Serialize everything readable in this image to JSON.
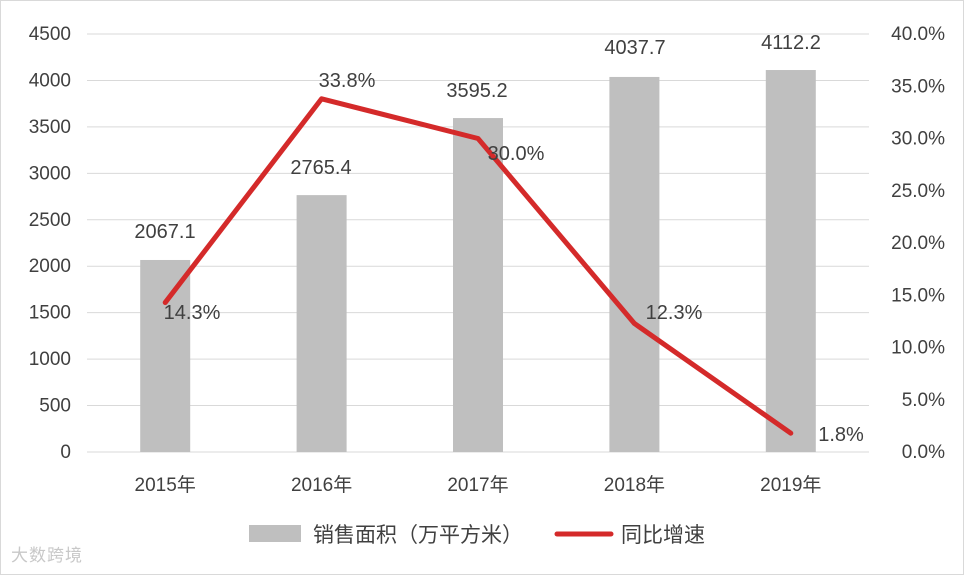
{
  "chart_data": {
    "type": "bar",
    "categories": [
      "2015年",
      "2016年",
      "2017年",
      "2018年",
      "2019年"
    ],
    "series": [
      {
        "name": "销售面积（万平方米）",
        "type": "bar",
        "axis": "left",
        "values": [
          2067.1,
          2765.4,
          3595.2,
          4037.7,
          4112.2
        ],
        "labels": [
          "2067.1",
          "2765.4",
          "3595.2",
          "4037.7",
          "4112.2"
        ],
        "color": "#bfbfbf"
      },
      {
        "name": "同比增速",
        "type": "line",
        "axis": "right",
        "values": [
          14.3,
          33.8,
          30.0,
          12.3,
          1.8
        ],
        "labels": [
          "14.3%",
          "33.8%",
          "30.0%",
          "12.3%",
          "1.8%"
        ],
        "color": "#d42a2a"
      }
    ],
    "y_left": {
      "lim": [
        0,
        4500
      ],
      "ticks": [
        0,
        500,
        1000,
        1500,
        2000,
        2500,
        3000,
        3500,
        4000,
        4500
      ],
      "tick_labels": [
        "0",
        "500",
        "1000",
        "1500",
        "2000",
        "2500",
        "3000",
        "3500",
        "4000",
        "4500"
      ]
    },
    "y_right": {
      "lim": [
        0,
        40
      ],
      "ticks": [
        0,
        5,
        10,
        15,
        20,
        25,
        30,
        35,
        40
      ],
      "tick_labels": [
        "0.0%",
        "5.0%",
        "10.0%",
        "15.0%",
        "20.0%",
        "25.0%",
        "30.0%",
        "35.0%",
        "40.0%"
      ]
    },
    "grid": true,
    "legend": "bottom",
    "title": "",
    "xlabel": "",
    "ylabel": ""
  },
  "watermark": "大数跨境"
}
